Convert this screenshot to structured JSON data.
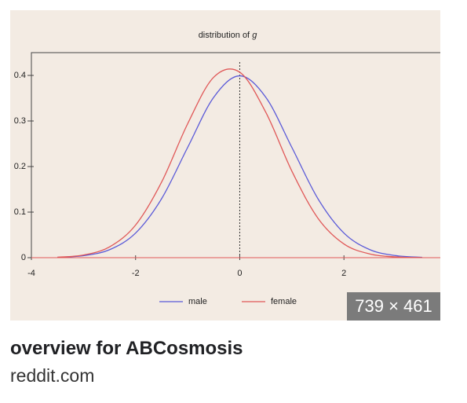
{
  "image": {
    "chart": {
      "type": "line",
      "title": "distribution of",
      "title_var": "g",
      "x": [
        -3.5,
        -3,
        -2.5,
        -2,
        -1.5,
        -1,
        -0.5,
        0,
        0.5,
        1,
        1.5,
        2,
        2.5,
        3,
        3.5
      ],
      "series": [
        {
          "name": "male",
          "color": "#5a5ad8",
          "values": [
            0.0009,
            0.0044,
            0.0175,
            0.054,
            0.1295,
            0.242,
            0.352,
            0.399,
            0.352,
            0.242,
            0.1295,
            0.054,
            0.0175,
            0.0044,
            0.0009
          ]
        },
        {
          "name": "female",
          "color": "#e05858",
          "values": [
            0.0011,
            0.0059,
            0.0236,
            0.0716,
            0.166,
            0.294,
            0.396,
            0.407,
            0.319,
            0.19,
            0.0867,
            0.0301,
            0.008,
            0.0016,
            0.0002
          ]
        }
      ],
      "xlim": [
        -4,
        3.85
      ],
      "ylim": [
        0,
        0.45
      ],
      "xticks": [
        -4,
        -2,
        0,
        2
      ],
      "yticks": [
        0,
        0.1,
        0.2,
        0.3,
        0.4
      ],
      "vline": 0
    },
    "size_badge": "739 × 461"
  },
  "title": "overview for ABCosmosis",
  "source": "reddit.com"
}
